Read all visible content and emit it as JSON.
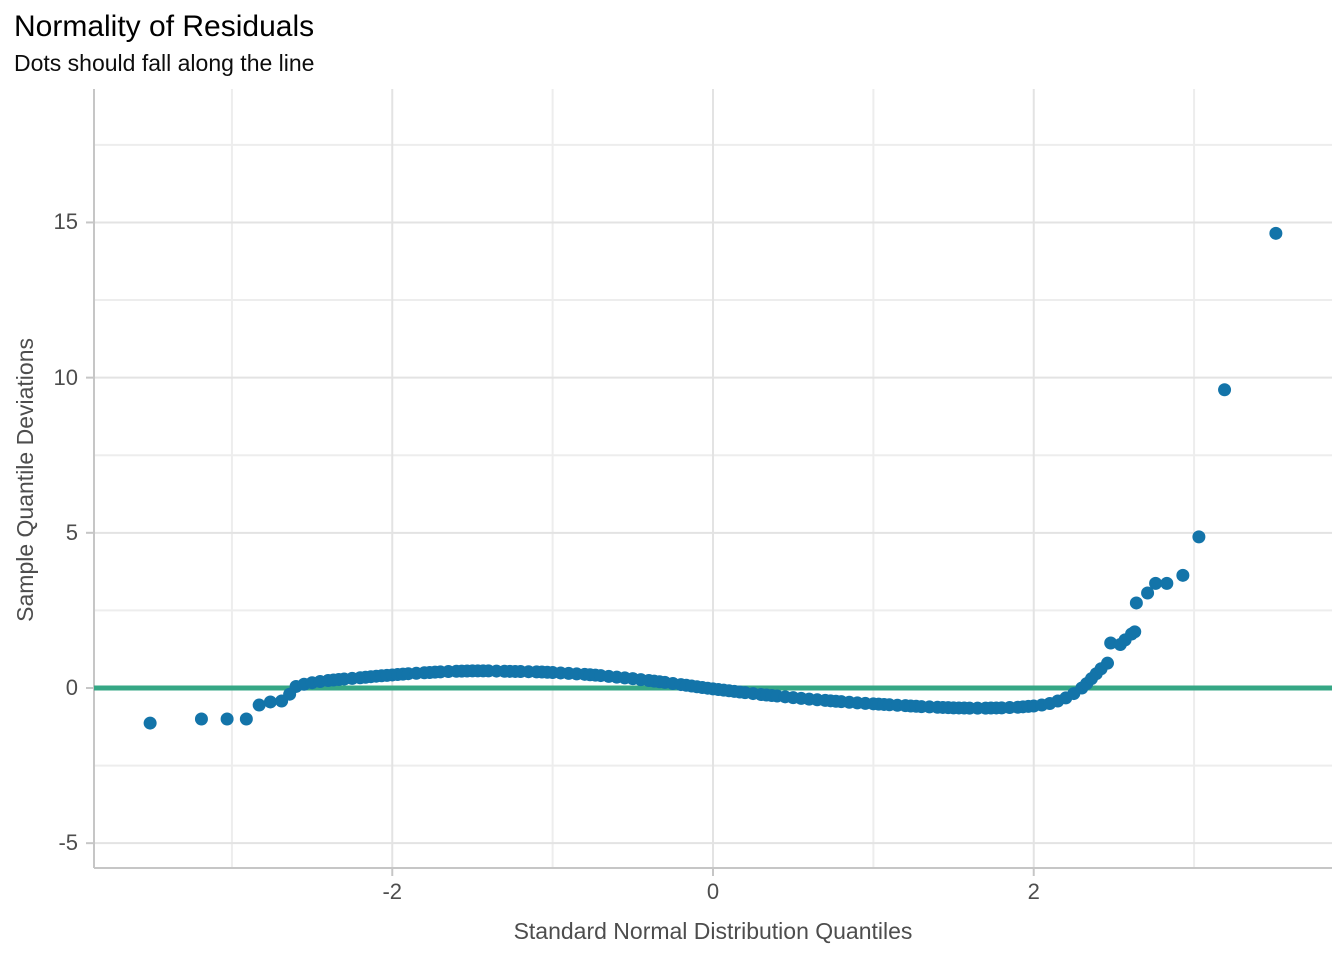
{
  "chart_data": {
    "type": "scatter",
    "title": "Normality of Residuals",
    "subtitle": "Dots should fall along the line",
    "xlabel": "Standard Normal Distribution Quantiles",
    "ylabel": "Sample Quantile Deviations",
    "xlim": [
      -3.86,
      3.86
    ],
    "ylim": [
      -5.8,
      19.3
    ],
    "grid": "on",
    "legend": "none",
    "x_ticks": [
      {
        "value": -2,
        "label": "-2"
      },
      {
        "value": 0,
        "label": "0"
      },
      {
        "value": 2,
        "label": "2"
      }
    ],
    "y_ticks": [
      {
        "value": 15,
        "label": "15"
      },
      {
        "value": 10,
        "label": "10"
      },
      {
        "value": 5,
        "label": "5"
      },
      {
        "value": 0,
        "label": "0"
      },
      {
        "value": -5,
        "label": "-5"
      }
    ],
    "x_minor_gridlines": [
      -3,
      -1,
      1,
      3
    ],
    "y_minor_gridlines": [
      -2.5,
      2.5,
      7.5,
      12.5,
      17.5
    ],
    "reference_line": {
      "y": 0,
      "color": "#36a785",
      "width": 5
    },
    "point_radius": 6.5,
    "band_sample_step": 0.04,
    "colors": {
      "point": "#1374a9",
      "grid_major": "#e3e3e3",
      "grid_minor": "#ededed",
      "axis_line": "#c6c6c6",
      "tick_text": "#4d4d4d",
      "title_text": "#000000"
    },
    "band_curve": [
      [
        -2.6,
        0.05
      ],
      [
        -2.55,
        0.12
      ],
      [
        -2.5,
        0.17
      ],
      [
        -2.45,
        0.21
      ],
      [
        -2.4,
        0.24
      ],
      [
        -2.3,
        0.29
      ],
      [
        -2.2,
        0.33
      ],
      [
        -2.1,
        0.38
      ],
      [
        -2.0,
        0.42
      ],
      [
        -1.9,
        0.46
      ],
      [
        -1.8,
        0.49
      ],
      [
        -1.7,
        0.52
      ],
      [
        -1.6,
        0.54
      ],
      [
        -1.5,
        0.55
      ],
      [
        -1.4,
        0.55
      ],
      [
        -1.3,
        0.54
      ],
      [
        -1.2,
        0.53
      ],
      [
        -1.1,
        0.52
      ],
      [
        -1.0,
        0.5
      ],
      [
        -0.9,
        0.47
      ],
      [
        -0.8,
        0.44
      ],
      [
        -0.7,
        0.4
      ],
      [
        -0.6,
        0.35
      ],
      [
        -0.5,
        0.3
      ],
      [
        -0.4,
        0.24
      ],
      [
        -0.3,
        0.18
      ],
      [
        -0.2,
        0.11
      ],
      [
        -0.1,
        0.04
      ],
      [
        0.0,
        -0.03
      ],
      [
        0.1,
        -0.09
      ],
      [
        0.2,
        -0.15
      ],
      [
        0.3,
        -0.21
      ],
      [
        0.4,
        -0.26
      ],
      [
        0.5,
        -0.31
      ],
      [
        0.6,
        -0.36
      ],
      [
        0.7,
        -0.4
      ],
      [
        0.8,
        -0.44
      ],
      [
        0.9,
        -0.48
      ],
      [
        1.0,
        -0.51
      ],
      [
        1.1,
        -0.54
      ],
      [
        1.2,
        -0.57
      ],
      [
        1.3,
        -0.6
      ],
      [
        1.4,
        -0.62
      ],
      [
        1.5,
        -0.64
      ],
      [
        1.6,
        -0.65
      ],
      [
        1.7,
        -0.65
      ],
      [
        1.8,
        -0.64
      ],
      [
        1.9,
        -0.62
      ],
      [
        2.0,
        -0.58
      ],
      [
        2.05,
        -0.55
      ],
      [
        2.1,
        -0.5
      ],
      [
        2.15,
        -0.42
      ],
      [
        2.2,
        -0.32
      ],
      [
        2.25,
        -0.18
      ],
      [
        2.3,
        0.0
      ],
      [
        2.33,
        0.14
      ],
      [
        2.36,
        0.3
      ],
      [
        2.39,
        0.46
      ],
      [
        2.42,
        0.62
      ],
      [
        2.46,
        0.8
      ]
    ],
    "outlier_points": [
      [
        -3.51,
        -1.13
      ],
      [
        -3.19,
        -1.0
      ],
      [
        -3.03,
        -1.0
      ],
      [
        -2.91,
        -1.0
      ],
      [
        -2.83,
        -0.55
      ],
      [
        -2.76,
        -0.45
      ],
      [
        -2.69,
        -0.42
      ],
      [
        -2.64,
        -0.2
      ],
      [
        2.48,
        1.45
      ],
      [
        2.54,
        1.4
      ],
      [
        2.57,
        1.55
      ],
      [
        2.61,
        1.74
      ],
      [
        2.63,
        1.81
      ],
      [
        2.64,
        2.74
      ],
      [
        2.71,
        3.06
      ],
      [
        2.76,
        3.37
      ],
      [
        2.83,
        3.37
      ],
      [
        2.93,
        3.63
      ],
      [
        3.03,
        4.87
      ],
      [
        3.19,
        9.61
      ],
      [
        3.51,
        14.65
      ]
    ]
  }
}
